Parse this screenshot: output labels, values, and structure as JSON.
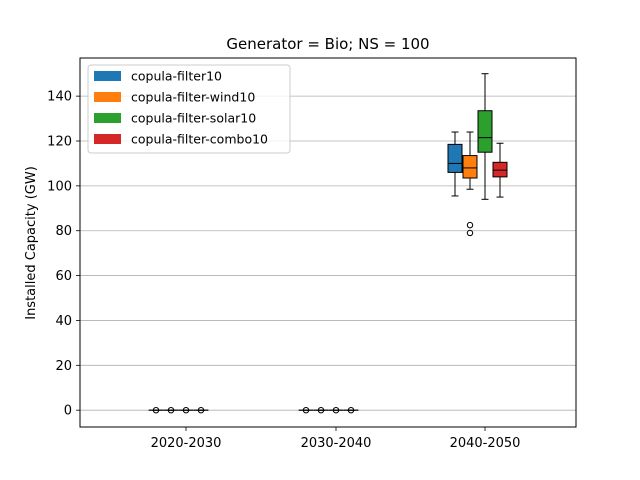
{
  "chart_data": {
    "type": "box",
    "title": "Generator = Bio; NS = 100",
    "xlabel": "",
    "ylabel": "Installed Capacity (GW)",
    "ylim": [
      -7.5,
      157
    ],
    "yticks": [
      0,
      20,
      40,
      60,
      80,
      100,
      120,
      140
    ],
    "grid": "y",
    "legend_position": "top-left",
    "categories": [
      "2020-2030",
      "2030-2040",
      "2040-2050"
    ],
    "series": [
      {
        "name": "copula-filter10",
        "color": "#1f77b4",
        "boxes": [
          {
            "whislo": 0,
            "q1": 0,
            "med": 0,
            "q3": 0,
            "whishi": 0,
            "fliers": [
              0
            ]
          },
          {
            "whislo": 0,
            "q1": 0,
            "med": 0,
            "q3": 0,
            "whishi": 0,
            "fliers": [
              0
            ]
          },
          {
            "whislo": 95.5,
            "q1": 106,
            "med": 110,
            "q3": 118.5,
            "whishi": 124,
            "fliers": []
          }
        ]
      },
      {
        "name": "copula-filter-wind10",
        "color": "#ff7f0e",
        "boxes": [
          {
            "whislo": 0,
            "q1": 0,
            "med": 0,
            "q3": 0,
            "whishi": 0,
            "fliers": [
              0
            ]
          },
          {
            "whislo": 0,
            "q1": 0,
            "med": 0,
            "q3": 0,
            "whishi": 0,
            "fliers": [
              0
            ]
          },
          {
            "whislo": 98.5,
            "q1": 103.5,
            "med": 108,
            "q3": 113.5,
            "whishi": 124,
            "fliers": [
              79,
              82.5
            ]
          }
        ]
      },
      {
        "name": "copula-filter-solar10",
        "color": "#2ca02c",
        "boxes": [
          {
            "whislo": 0,
            "q1": 0,
            "med": 0,
            "q3": 0,
            "whishi": 0,
            "fliers": [
              0
            ]
          },
          {
            "whislo": 0,
            "q1": 0,
            "med": 0,
            "q3": 0,
            "whishi": 0,
            "fliers": [
              0
            ]
          },
          {
            "whislo": 94,
            "q1": 115,
            "med": 121.5,
            "q3": 133.5,
            "whishi": 150,
            "fliers": []
          }
        ]
      },
      {
        "name": "copula-filter-combo10",
        "color": "#d62728",
        "boxes": [
          {
            "whislo": 0,
            "q1": 0,
            "med": 0,
            "q3": 0,
            "whishi": 0,
            "fliers": [
              0
            ]
          },
          {
            "whislo": 0,
            "q1": 0,
            "med": 0,
            "q3": 0,
            "whishi": 0,
            "fliers": [
              0
            ]
          },
          {
            "whislo": 95,
            "q1": 104,
            "med": 107,
            "q3": 110.5,
            "whishi": 119,
            "fliers": []
          }
        ]
      }
    ]
  }
}
